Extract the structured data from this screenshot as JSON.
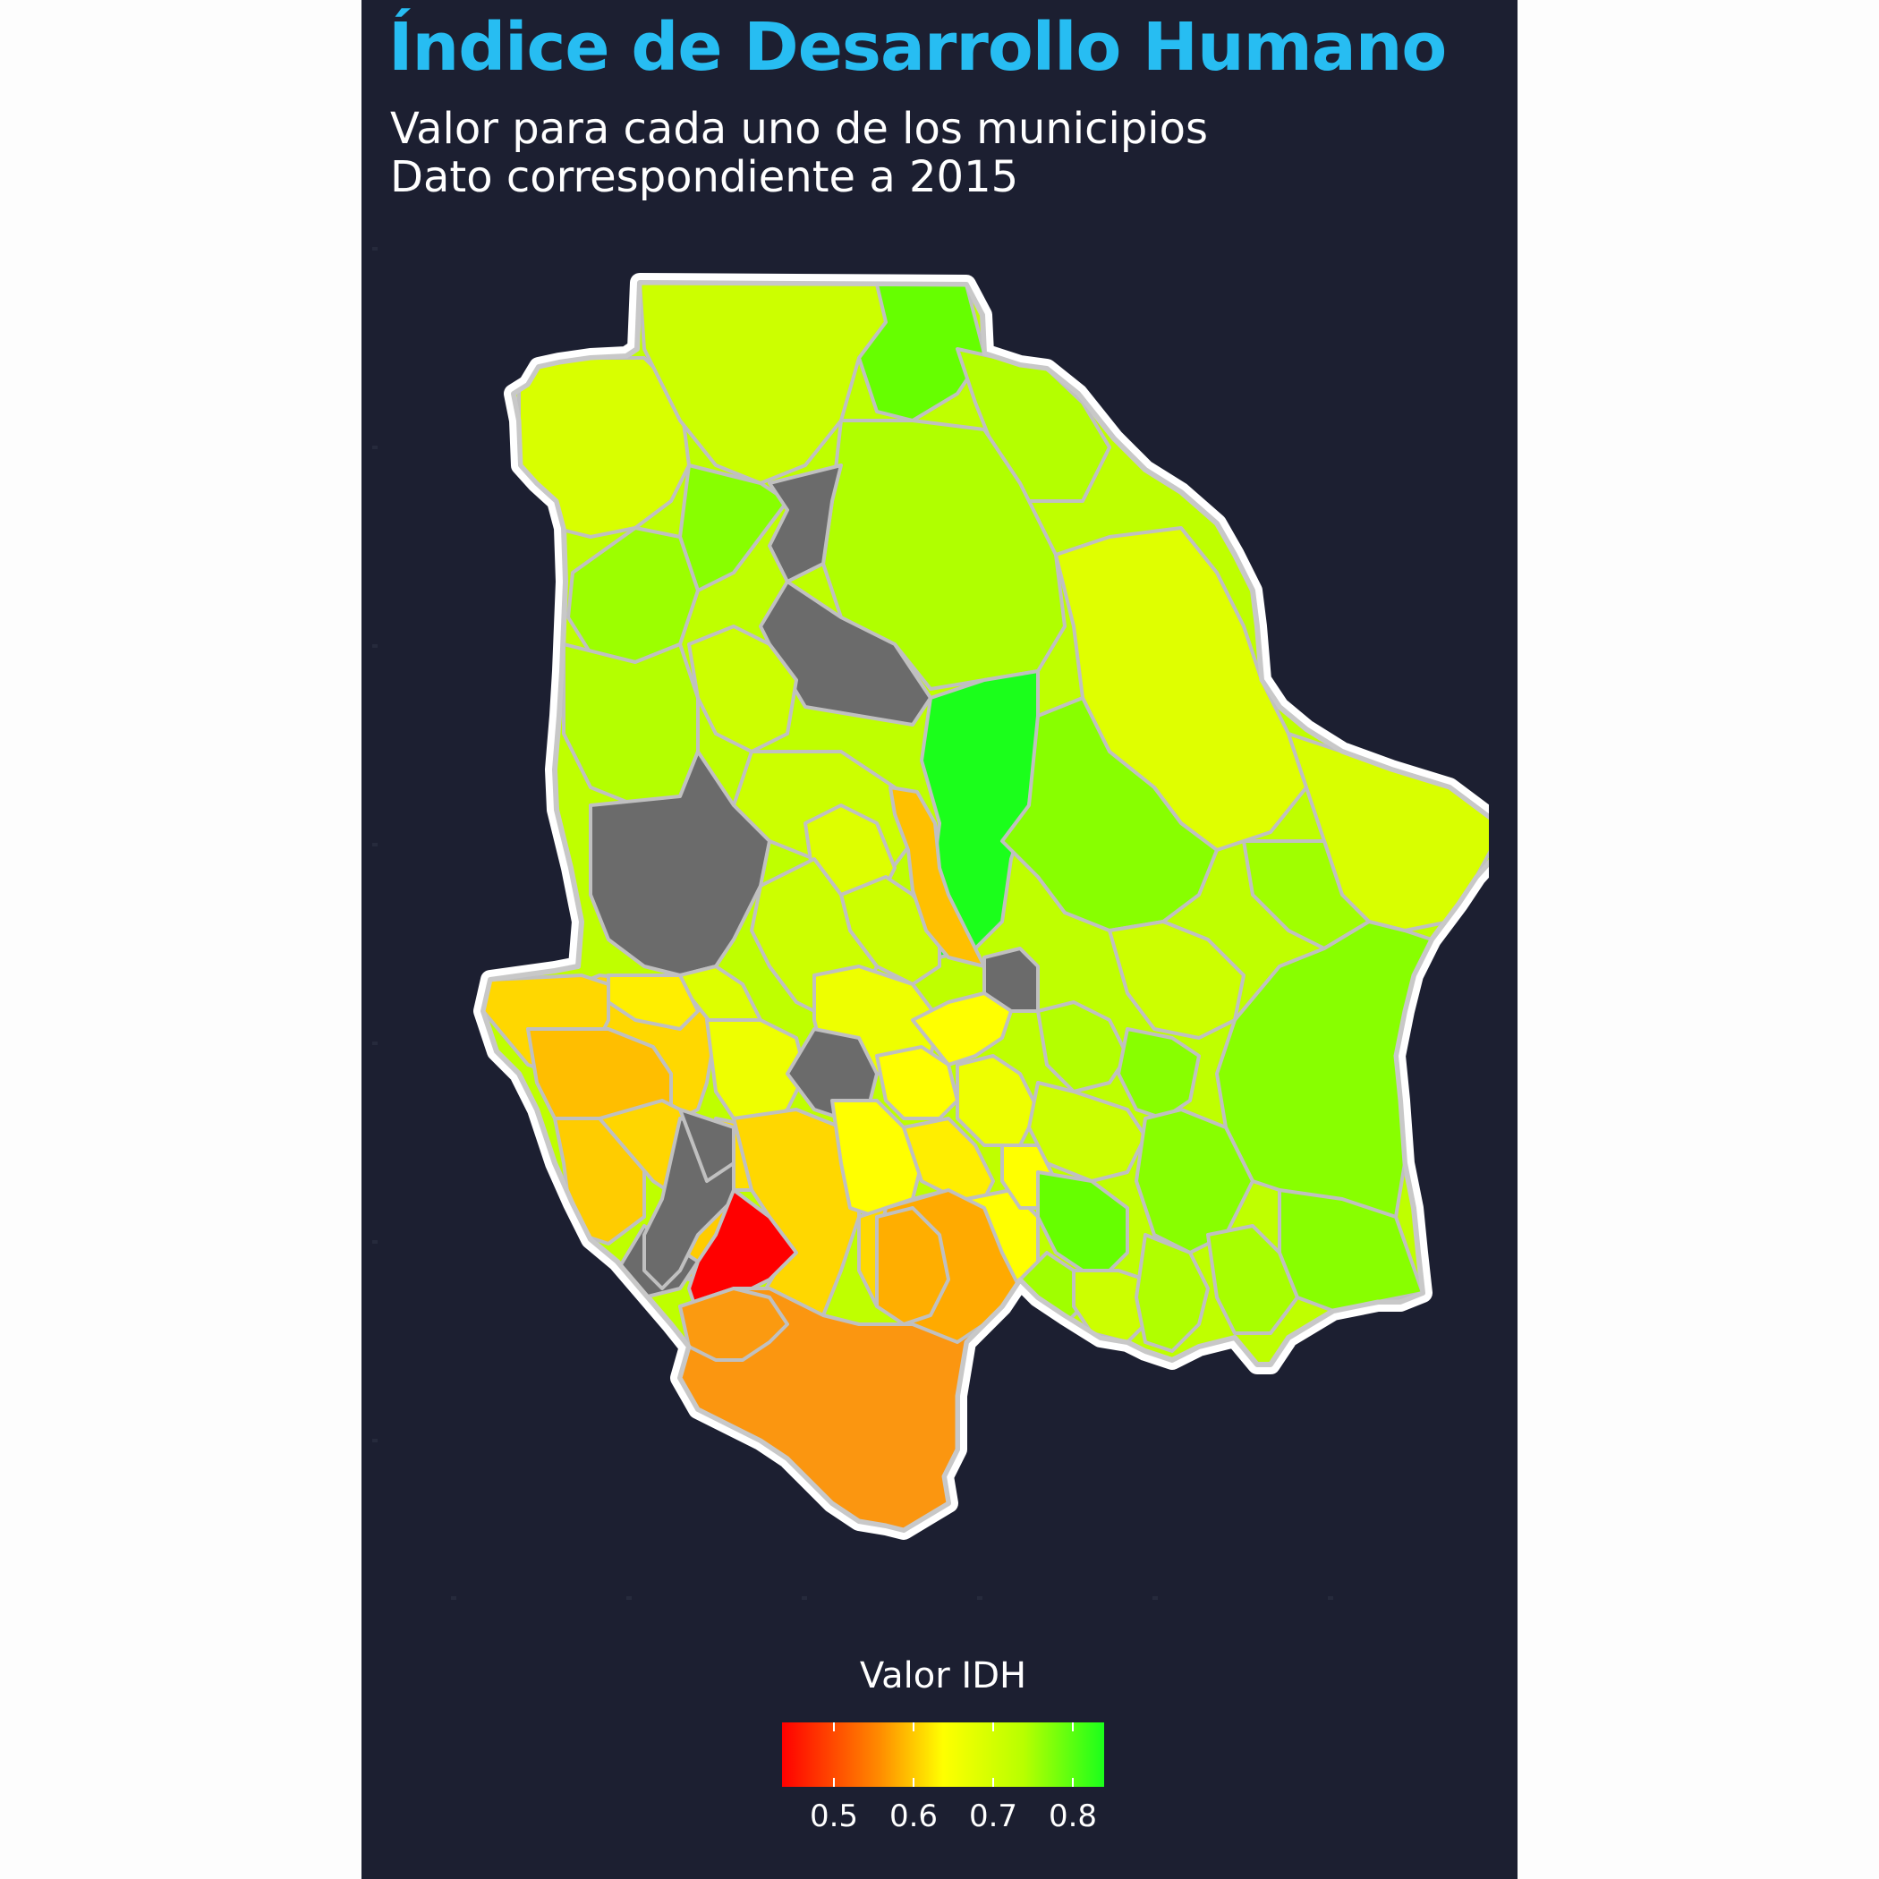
{
  "title": "Índice de Desarrollo Humano",
  "subtitle": {
    "line1": "Valor para cada uno de los municipios",
    "line2": "Dato correspondiente a 2015"
  },
  "legend": {
    "title": "Valor IDH",
    "scale": "red-yellow-green continuous",
    "range": [
      0.44,
      0.84
    ],
    "ticks": [
      "0.5",
      "0.6",
      "0.7",
      "0.8"
    ],
    "no_data_color": "#6b6b6b"
  },
  "colors": {
    "background": "#1c1f31",
    "title": "#27bdf2",
    "text": "#ffffff",
    "state_outline": "#ffffff",
    "municipal_border": "#c0c0c0"
  }
}
